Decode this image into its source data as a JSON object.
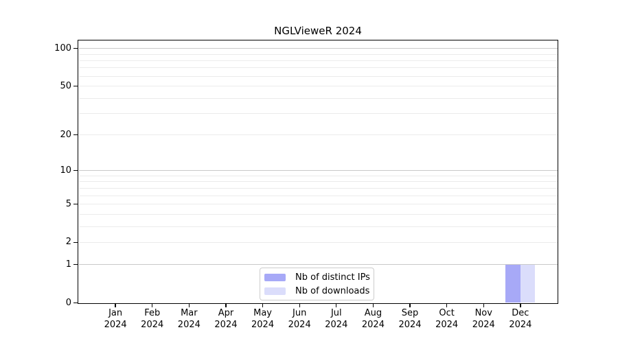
{
  "chart_data": {
    "type": "bar",
    "title": "NGLVieweR 2024",
    "categories": [
      "Jan 2024",
      "Feb 2024",
      "Mar 2024",
      "Apr 2024",
      "May 2024",
      "Jun 2024",
      "Jul 2024",
      "Aug 2024",
      "Sep 2024",
      "Oct 2024",
      "Nov 2024",
      "Dec 2024"
    ],
    "series": [
      {
        "name": "Nb of distinct IPs",
        "color": "#a7a9f7",
        "values": [
          0,
          0,
          0,
          0,
          0,
          0,
          0,
          0,
          0,
          0,
          0,
          1
        ]
      },
      {
        "name": "Nb of downloads",
        "color": "#dbddfb",
        "values": [
          0,
          0,
          0,
          0,
          0,
          0,
          0,
          0,
          0,
          0,
          0,
          1
        ]
      }
    ],
    "xlabel": "",
    "ylabel": "",
    "yscale": "log1p",
    "ylim": [
      0,
      115
    ],
    "y_ticks": [
      0,
      1,
      2,
      5,
      10,
      20,
      50,
      100
    ],
    "grid": true,
    "grid_major_values": [
      1,
      10,
      100
    ],
    "grid_minor_values": [
      2,
      3,
      4,
      5,
      6,
      7,
      8,
      9,
      20,
      30,
      40,
      50,
      60,
      70,
      80,
      90
    ],
    "legend_position": "bottom-center",
    "colors": {
      "grid_major": "#c9c9c9",
      "grid_minor": "#ebebeb",
      "spine": "#000000",
      "background": "#ffffff",
      "text": "#000000"
    }
  }
}
